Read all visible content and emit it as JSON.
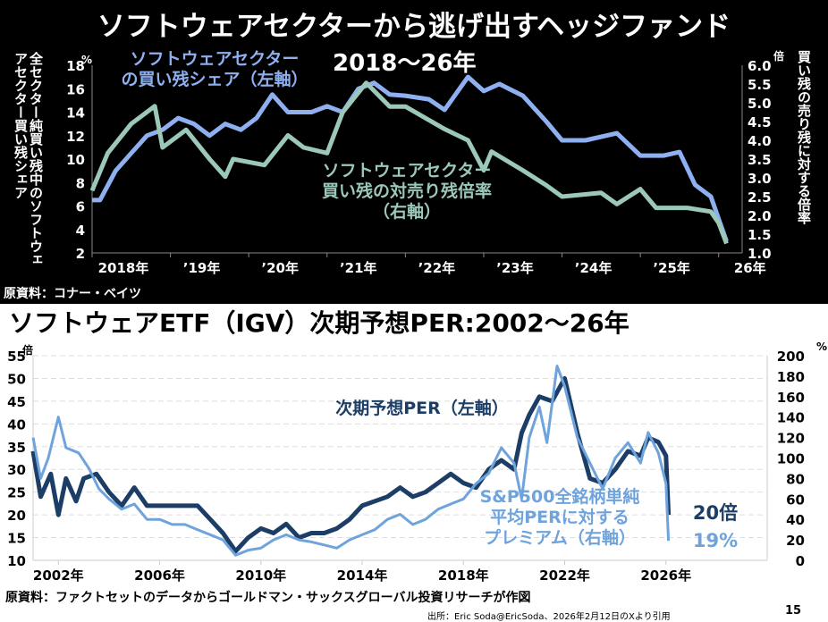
{
  "title_top": "ソフトウェアセクターから逃げ出すヘッジファンド",
  "subtitle_top": "2018〜26年",
  "title_bottom": "ソフトウェアETF（IGV）次期予想PER:2002〜26年",
  "source_top": "原資料：コナー・ベイツ",
  "source_bottom": "原資料：ファクトセットのデータからゴールドマン・サックスグローバル投資リサーチが作図",
  "citation": "出所：Eric Soda@EricSoda、2026年2月12日のXより引用",
  "page_number": "15",
  "colors": {
    "share": "#8fb0f0",
    "ratio": "#9cc8b8",
    "per": "#1b3d66",
    "premium": "#6fa3dc"
  },
  "chart_data": [
    {
      "type": "line",
      "ylabel": "全セクター純買い残中のソフトウェアセクター買い残シェア",
      "ylabel_right": "買い残の売り残に対する倍率",
      "y_unit": "%",
      "y2_unit": "倍",
      "ylim": [
        2,
        18
      ],
      "y2lim": [
        1.0,
        6.0
      ],
      "yticks": [
        "2",
        "4",
        "6",
        "8",
        "10",
        "12",
        "14",
        "16",
        "18"
      ],
      "y2ticks": [
        "1.0",
        "1.5",
        "2.0",
        "2.5",
        "3.0",
        "3.5",
        "4.0",
        "4.5",
        "5.0",
        "5.5",
        "6.0"
      ],
      "xticks": [
        {
          "x": 2018,
          "label": "2018年"
        },
        {
          "x": 2019,
          "label": "’19年"
        },
        {
          "x": 2020,
          "label": "’20年"
        },
        {
          "x": 2021,
          "label": "’21年"
        },
        {
          "x": 2022,
          "label": "’22年"
        },
        {
          "x": 2023,
          "label": "’23年"
        },
        {
          "x": 2024,
          "label": "’24年"
        },
        {
          "x": 2025,
          "label": "’25年"
        },
        {
          "x": 2026,
          "label": "26年"
        }
      ],
      "xlim": [
        2018,
        2026.3
      ],
      "series": [
        {
          "name": "ソフトウェアセクターの買い残シェア（左軸）",
          "axis": "left",
          "color": "#8fb0f0",
          "x": [
            2018.0,
            2018.1,
            2018.3,
            2018.5,
            2018.7,
            2018.9,
            2019.1,
            2019.3,
            2019.5,
            2019.7,
            2019.9,
            2020.1,
            2020.3,
            2020.5,
            2020.8,
            2021.0,
            2021.2,
            2021.4,
            2021.6,
            2021.8,
            2022.0,
            2022.3,
            2022.5,
            2022.8,
            2023.0,
            2023.2,
            2023.5,
            2023.8,
            2024.0,
            2024.3,
            2024.7,
            2025.0,
            2025.3,
            2025.5,
            2025.7,
            2025.9,
            2026.0,
            2026.1
          ],
          "y": [
            6.5,
            6.5,
            9,
            10.5,
            12,
            12.5,
            13.5,
            13,
            12,
            13,
            12.5,
            13.5,
            15.5,
            14,
            14,
            14.5,
            14,
            16,
            16.5,
            15.5,
            15.4,
            15.1,
            14.2,
            17.0,
            15.8,
            16.4,
            15.4,
            13.2,
            11.6,
            11.6,
            12.2,
            10.3,
            10.3,
            10.6,
            7.8,
            6.8,
            4.9,
            3.0
          ]
        },
        {
          "name": "ソフトウェアセクター買い残の対売り残倍率（右軸）",
          "axis": "right",
          "color": "#9cc8b8",
          "x": [
            2018.0,
            2018.2,
            2018.5,
            2018.8,
            2018.9,
            2019.2,
            2019.5,
            2019.7,
            2019.8,
            2020.2,
            2020.5,
            2020.7,
            2021.0,
            2021.2,
            2021.5,
            2021.8,
            2022.0,
            2022.5,
            2022.8,
            2023.0,
            2023.1,
            2023.5,
            2023.8,
            2024.0,
            2024.5,
            2024.7,
            2025.0,
            2025.2,
            2025.6,
            2025.9,
            2026.0,
            2026.1
          ],
          "y": [
            2.66,
            3.66,
            4.44,
            4.91,
            3.81,
            4.28,
            3.5,
            3.03,
            3.5,
            3.34,
            4.13,
            3.81,
            3.66,
            4.75,
            5.53,
            4.9,
            4.9,
            4.3,
            4.0,
            3.2,
            3.7,
            3.2,
            2.8,
            2.5,
            2.6,
            2.3,
            2.7,
            2.2,
            2.2,
            2.1,
            1.8,
            1.25
          ]
        }
      ]
    },
    {
      "type": "line",
      "y_unit": "倍",
      "y2_unit": "%",
      "ylim": [
        10,
        55
      ],
      "y2lim": [
        0,
        200
      ],
      "yticks": [
        "10",
        "15",
        "20",
        "25",
        "30",
        "35",
        "40",
        "45",
        "50",
        "55"
      ],
      "y2ticks": [
        "0",
        "20",
        "40",
        "60",
        "80",
        "100",
        "120",
        "140",
        "160",
        "180",
        "200"
      ],
      "xlim": [
        2001,
        2030
      ],
      "xticks": [
        {
          "x": 2002,
          "label": "2002年"
        },
        {
          "x": 2006,
          "label": "2006年"
        },
        {
          "x": 2010,
          "label": "2010年"
        },
        {
          "x": 2014,
          "label": "2014年"
        },
        {
          "x": 2018,
          "label": "2018年"
        },
        {
          "x": 2022,
          "label": "2022年"
        },
        {
          "x": 2026,
          "label": "2026年"
        }
      ],
      "grid": true,
      "series": [
        {
          "name": "次期予想PER（左軸）",
          "axis": "left",
          "color": "#1b3d66",
          "end_label": "20倍",
          "x": [
            2001,
            2001.3,
            2001.7,
            2002,
            2002.3,
            2002.7,
            2003,
            2003.5,
            2004,
            2004.5,
            2005,
            2005.5,
            2006,
            2007,
            2007.5,
            2008,
            2008.5,
            2009,
            2009.5,
            2010,
            2010.5,
            2011,
            2011.5,
            2012,
            2012.5,
            2013,
            2013.5,
            2014,
            2014.5,
            2015,
            2015.5,
            2016,
            2016.5,
            2017,
            2017.5,
            2018,
            2018.5,
            2019,
            2019.5,
            2020,
            2020.3,
            2020.6,
            2021,
            2021.5,
            2022,
            2022.5,
            2023,
            2023.5,
            2024,
            2024.5,
            2025,
            2025.3,
            2025.7,
            2026,
            2026.1
          ],
          "y": [
            34,
            24,
            29,
            20,
            28,
            23,
            28,
            29,
            25,
            22,
            26,
            22,
            22,
            22,
            22,
            19,
            16,
            12,
            15,
            17,
            16,
            18,
            15,
            16,
            16,
            17,
            19,
            22,
            23,
            24,
            26,
            24,
            25,
            27,
            29,
            27,
            26,
            30,
            32,
            30,
            38,
            42,
            46,
            45,
            50,
            38,
            28,
            27,
            30,
            34,
            33,
            37,
            36,
            33,
            20
          ]
        },
        {
          "name": "S&P500全銘柄単純平均PERに対するプレミアム（右軸）",
          "axis": "right",
          "color": "#6fa3dc",
          "end_label": "19%",
          "x": [
            2001,
            2001.3,
            2001.6,
            2002,
            2002.3,
            2002.8,
            2003.2,
            2003.6,
            2004,
            2004.5,
            2005,
            2005.5,
            2006,
            2006.5,
            2007,
            2007.5,
            2008,
            2008.5,
            2009,
            2009.5,
            2010,
            2010.5,
            2011,
            2011.5,
            2012,
            2012.5,
            2013,
            2013.5,
            2014,
            2014.5,
            2015,
            2015.5,
            2016,
            2016.5,
            2017,
            2017.5,
            2018,
            2018.5,
            2019,
            2019.5,
            2020,
            2020.3,
            2020.6,
            2021,
            2021.3,
            2021.7,
            2022,
            2022.5,
            2023,
            2023.5,
            2024,
            2024.5,
            2025,
            2025.3,
            2025.7,
            2026.0,
            2026.1
          ],
          "y": [
            120,
            80,
            100,
            140,
            110,
            105,
            90,
            70,
            60,
            50,
            55,
            40,
            40,
            35,
            35,
            30,
            25,
            20,
            5,
            10,
            12,
            20,
            25,
            20,
            18,
            15,
            12,
            20,
            25,
            30,
            40,
            45,
            35,
            40,
            50,
            55,
            60,
            75,
            85,
            110,
            95,
            60,
            120,
            150,
            115,
            190,
            170,
            120,
            95,
            70,
            100,
            115,
            95,
            125,
            105,
            75,
            19
          ]
        }
      ]
    }
  ]
}
